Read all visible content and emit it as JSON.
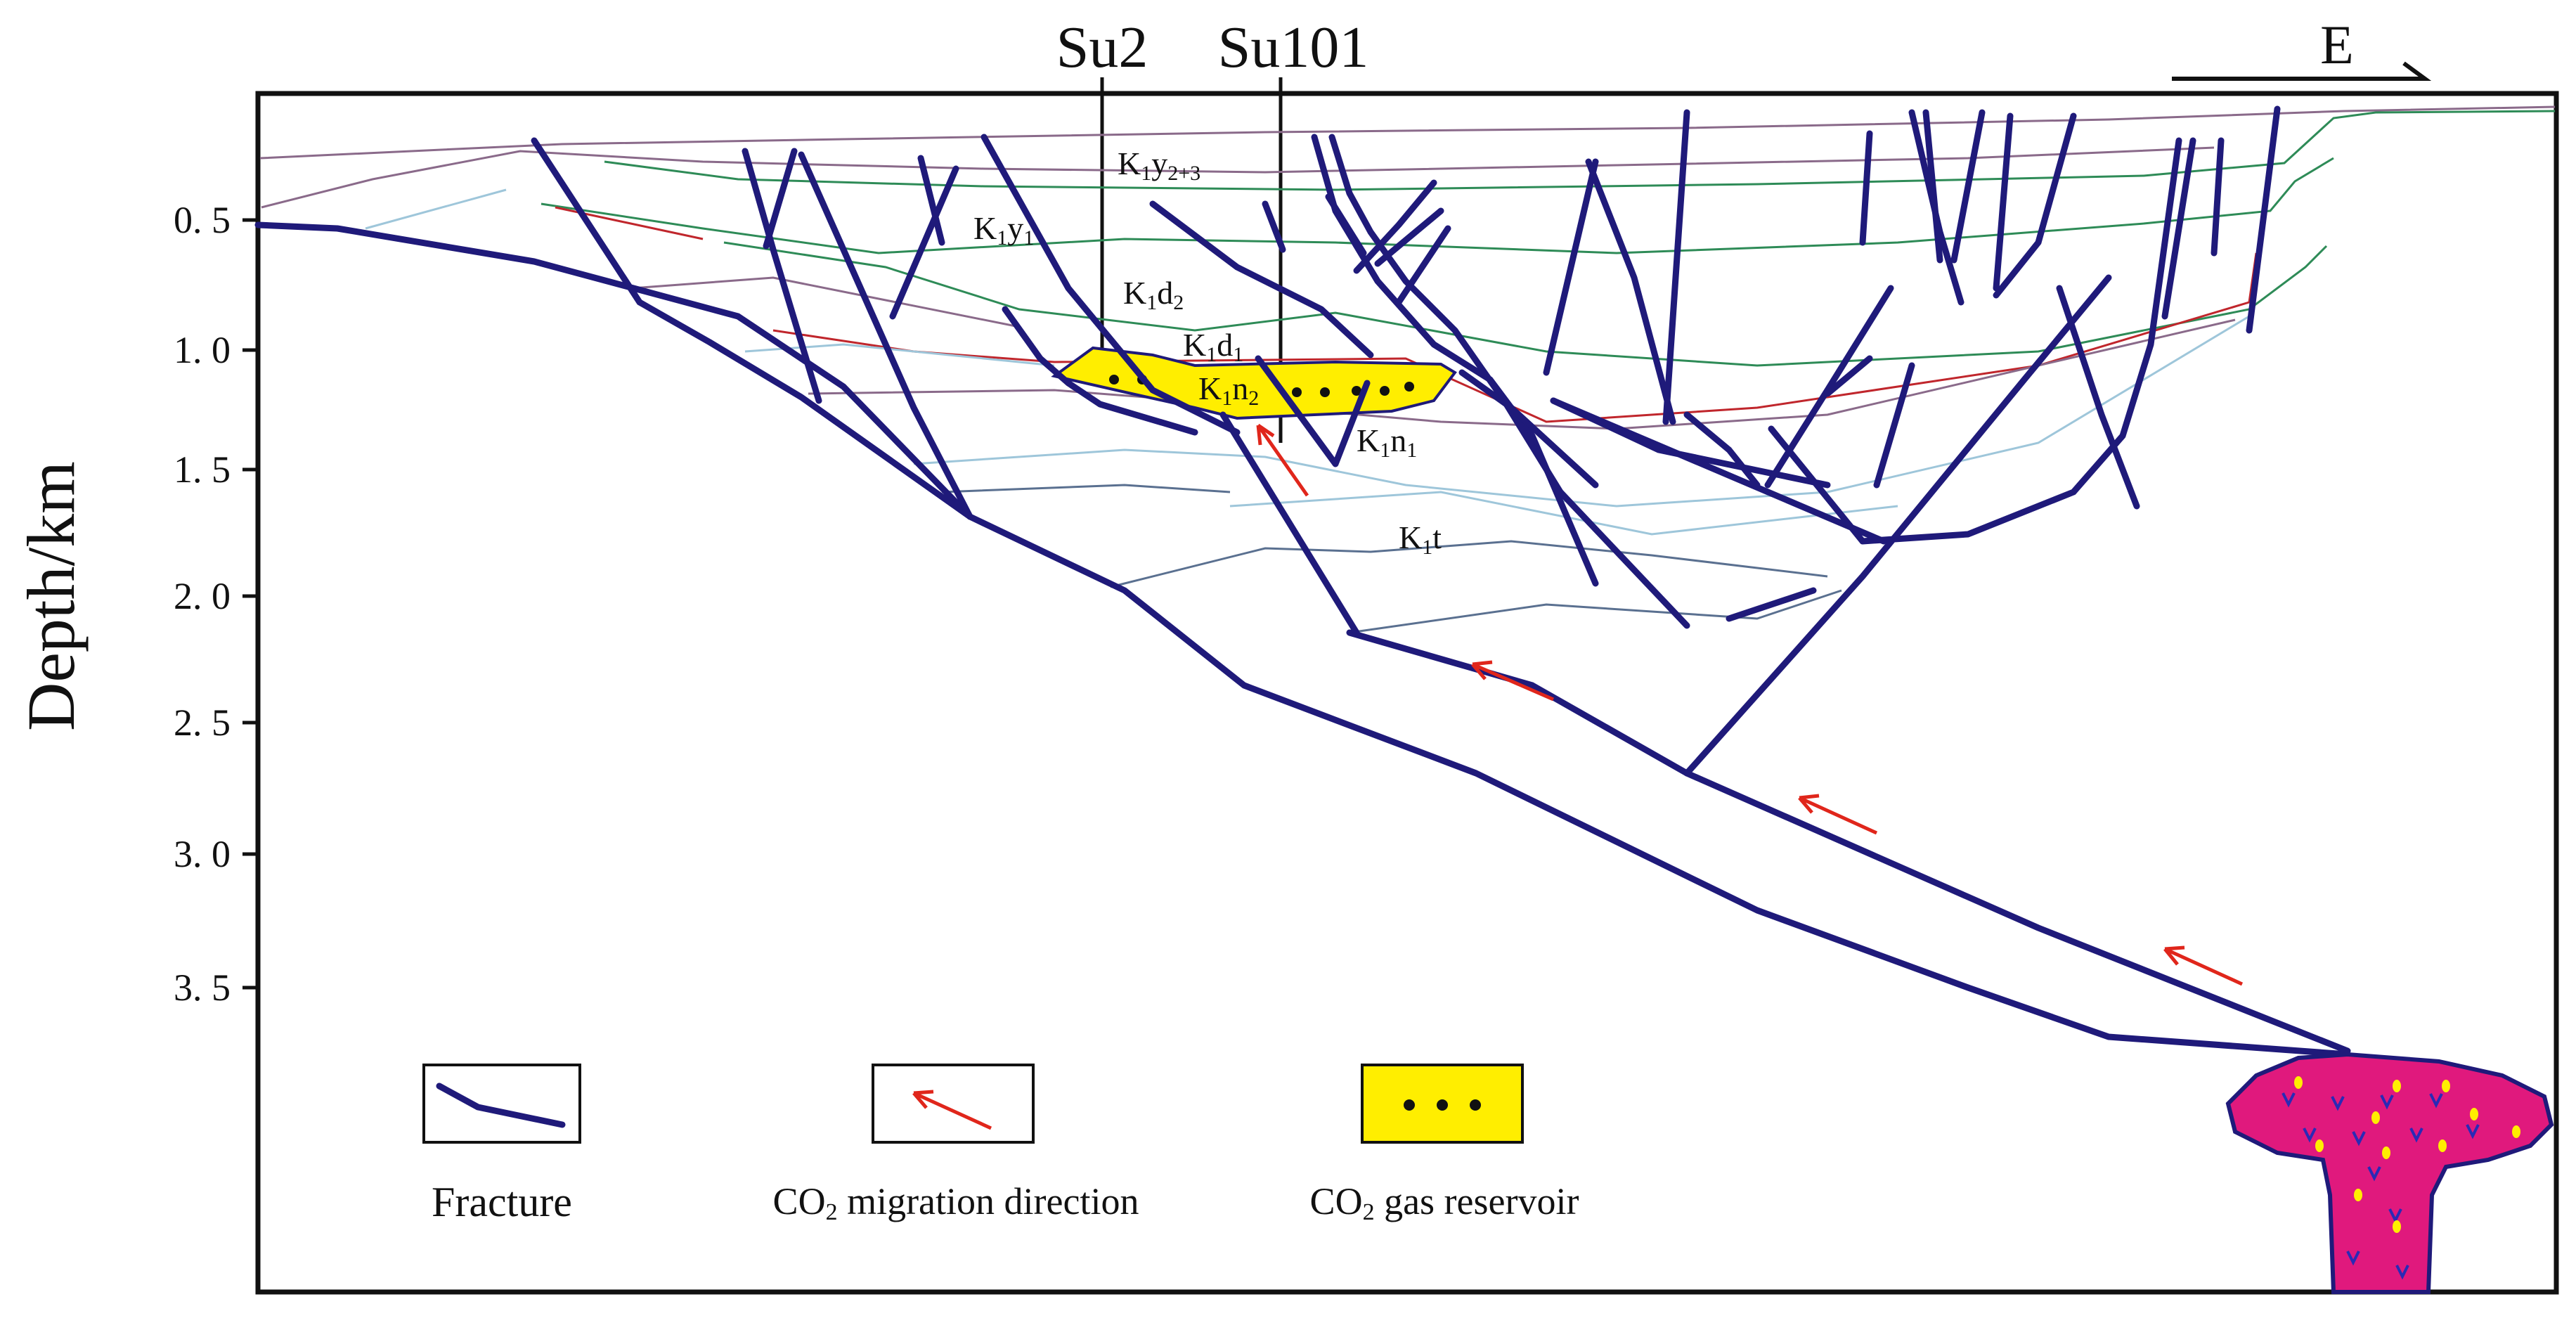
{
  "y_axis": {
    "label": "Depth/km",
    "ticks": [
      "0. 5",
      "1. 0",
      "1. 5",
      "2. 0",
      "2. 5",
      "3. 0",
      "3. 5"
    ]
  },
  "wells": [
    "Su2",
    "Su101"
  ],
  "direction_label": "E",
  "strata": {
    "k1y23": {
      "main": "K",
      "sub1": "1",
      "main2": "y",
      "sub2": "2+3"
    },
    "k1y1": {
      "main": "K",
      "sub1": "1",
      "main2": "y",
      "sub2": "1"
    },
    "k1d2": {
      "main": "K",
      "sub1": "1",
      "main2": "d",
      "sub2": "2"
    },
    "k1d1": {
      "main": "K",
      "sub1": "1",
      "main2": "d",
      "sub2": "1"
    },
    "k1n2": {
      "main": "K",
      "sub1": "1",
      "main2": "n",
      "sub2": "2"
    },
    "k1n1": {
      "main": "K",
      "sub1": "1",
      "main2": "n",
      "sub2": "1"
    },
    "k1t": {
      "main": "K",
      "sub1": "1",
      "main2": "t",
      "sub2": ""
    }
  },
  "legend": {
    "fracture": "Fracture",
    "migration_prefix": "CO",
    "migration_sub": "2",
    "migration_suffix": " migration direction",
    "reservoir_prefix": "CO",
    "reservoir_sub": "2",
    "reservoir_suffix": "  gas reservoir"
  },
  "colors": {
    "fracture": "#1f1a7a",
    "migration_arrow": "#e0261b",
    "gas_reservoir": "#ffee00",
    "magma_body": "#e0197d",
    "magma_v": "#2a2ab5",
    "magma_dots": "#ffee00",
    "horizon_green": "#2e8b57",
    "horizon_red": "#c0262c",
    "horizon_purple": "#8a6a8a",
    "horizon_lightblue": "#9ec6da",
    "horizon_steel": "#5a7090"
  },
  "icons": [
    "fracture-line-icon",
    "migration-arrow-icon",
    "gas-reservoir-swatch-icon",
    "direction-arrow-icon"
  ]
}
